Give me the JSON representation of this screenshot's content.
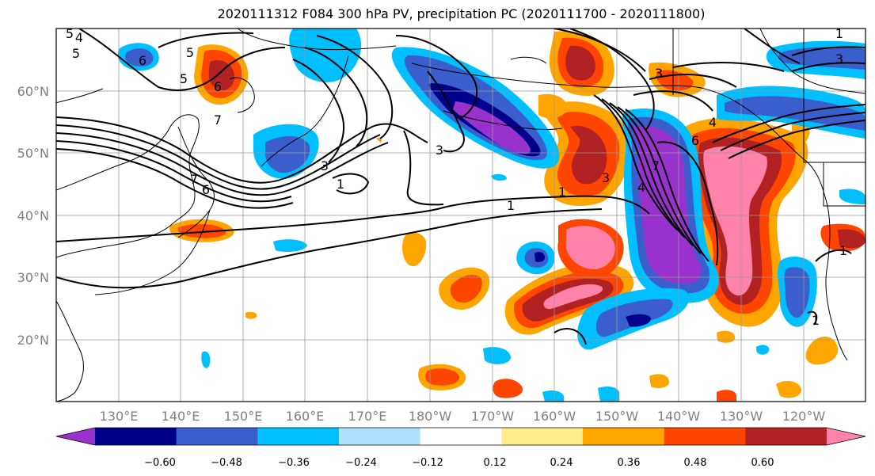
{
  "title": "2020111312 F084 300 hPa PV, precipitation PC (2020111700 - 2020111800)",
  "lat_labels": [
    "60°N",
    "50°N",
    "40°N",
    "30°N",
    "20°N"
  ],
  "lon_labels": [
    "130°E",
    "140°E",
    "150°E",
    "160°E",
    "170°E",
    "180°W",
    "170°W",
    "160°W",
    "150°W",
    "140°W",
    "130°W",
    "120°W"
  ],
  "colorbar": {
    "ticks": [
      "−0.60",
      "−0.48",
      "−0.36",
      "−0.24",
      "−0.12",
      "0.12",
      "0.24",
      "0.36",
      "0.48",
      "0.60"
    ],
    "colors": [
      "#9932cc",
      "#00008b",
      "#3a5fcd",
      "#00bfff",
      "#b0e2ff",
      "#ffffff",
      "#ffec8b",
      "#ffa500",
      "#ff4500",
      "#b22222",
      "#ff82ab"
    ]
  },
  "pv_contour_labels": [
    "5",
    "6",
    "5",
    "6",
    "7",
    "5",
    "4",
    "3",
    "1",
    "3",
    "7",
    "1",
    "3",
    "1",
    "3",
    "6",
    "7",
    "4",
    "4",
    "1",
    "1",
    "5",
    "6",
    "3",
    "1"
  ]
}
